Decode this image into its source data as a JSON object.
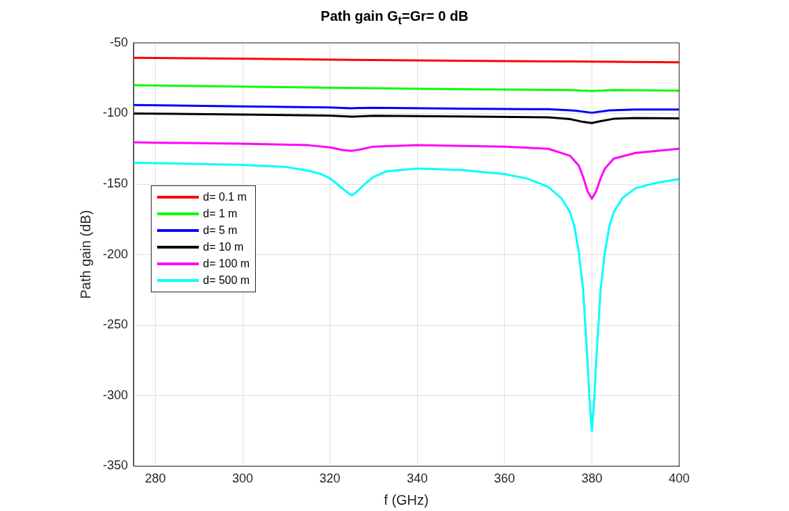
{
  "chart_data": {
    "type": "line",
    "title": "Path gain G$_{t}$=Gr= 0 dB",
    "xlabel": "f (GHz)",
    "ylabel": "Path gain (dB)",
    "xlim": [
      275,
      400
    ],
    "xticks": [
      280,
      300,
      320,
      340,
      360,
      380,
      400
    ],
    "ylim": [
      -350,
      -50
    ],
    "yticks": [
      -350,
      -300,
      -250,
      -200,
      -150,
      -100,
      -50
    ],
    "grid": true,
    "legend": "left",
    "marker": "none",
    "line_style": "solid",
    "series": [
      {
        "name": "d= 0.1 m",
        "color": "#ff0000",
        "x": [
          275,
          300,
          325,
          350,
          375,
          400
        ],
        "values": [
          -60.5,
          -61.2,
          -62,
          -62.6,
          -63.2,
          -63.8
        ]
      },
      {
        "name": "d= 1 m",
        "color": "#00ff00",
        "x": [
          275,
          300,
          325,
          350,
          375,
          380,
          385,
          400
        ],
        "values": [
          -80,
          -81,
          -82,
          -82.8,
          -83.4,
          -84,
          -83.4,
          -83.8
        ]
      },
      {
        "name": "d= 5 m",
        "color": "#0000ff",
        "x": [
          275,
          300,
          320,
          325,
          330,
          350,
          370,
          376,
          380,
          384,
          390,
          400
        ],
        "values": [
          -94,
          -95,
          -95.8,
          -96.3,
          -96,
          -96.6,
          -97,
          -98,
          -99.5,
          -97.8,
          -97.2,
          -97.2
        ]
      },
      {
        "name": "d= 10 m",
        "color": "#000000",
        "x": [
          275,
          300,
          320,
          325,
          330,
          350,
          370,
          375,
          378,
          380,
          382,
          385,
          390,
          400
        ],
        "values": [
          -100,
          -100.8,
          -101.5,
          -102.3,
          -101.7,
          -102.2,
          -102.8,
          -104,
          -106,
          -106.8,
          -105.5,
          -103.8,
          -103.3,
          -103.5
        ]
      },
      {
        "name": "d= 100 m",
        "color": "#ff00ff",
        "x": [
          275,
          300,
          315,
          320,
          323,
          325,
          327,
          330,
          340,
          360,
          370,
          375,
          377,
          378,
          379,
          380,
          381,
          382,
          383,
          385,
          390,
          400
        ],
        "values": [
          -120.5,
          -121.5,
          -122.5,
          -124,
          -126,
          -126.5,
          -125.5,
          -123.5,
          -122.5,
          -123.5,
          -125,
          -130,
          -137,
          -145,
          -155,
          -160.5,
          -155,
          -146,
          -139,
          -132,
          -128,
          -125
        ]
      },
      {
        "name": "d= 500 m",
        "color": "#00ffff",
        "x": [
          275,
          290,
          300,
          310,
          315,
          318,
          320,
          322,
          324,
          325,
          326,
          328,
          330,
          333,
          340,
          350,
          360,
          365,
          370,
          373,
          375,
          376,
          377,
          378,
          379,
          379.5,
          380,
          380.5,
          381,
          382,
          383,
          384,
          385,
          387,
          390,
          395,
          400
        ],
        "values": [
          -135,
          -135.8,
          -136.5,
          -138,
          -140.5,
          -143,
          -146,
          -151,
          -156,
          -158,
          -156,
          -150,
          -145,
          -141,
          -139,
          -140,
          -143,
          -146,
          -152,
          -160,
          -170,
          -180,
          -198,
          -225,
          -275,
          -305,
          -325,
          -305,
          -275,
          -225,
          -198,
          -180,
          -170,
          -160,
          -153,
          -149,
          -146.5
        ]
      }
    ]
  }
}
